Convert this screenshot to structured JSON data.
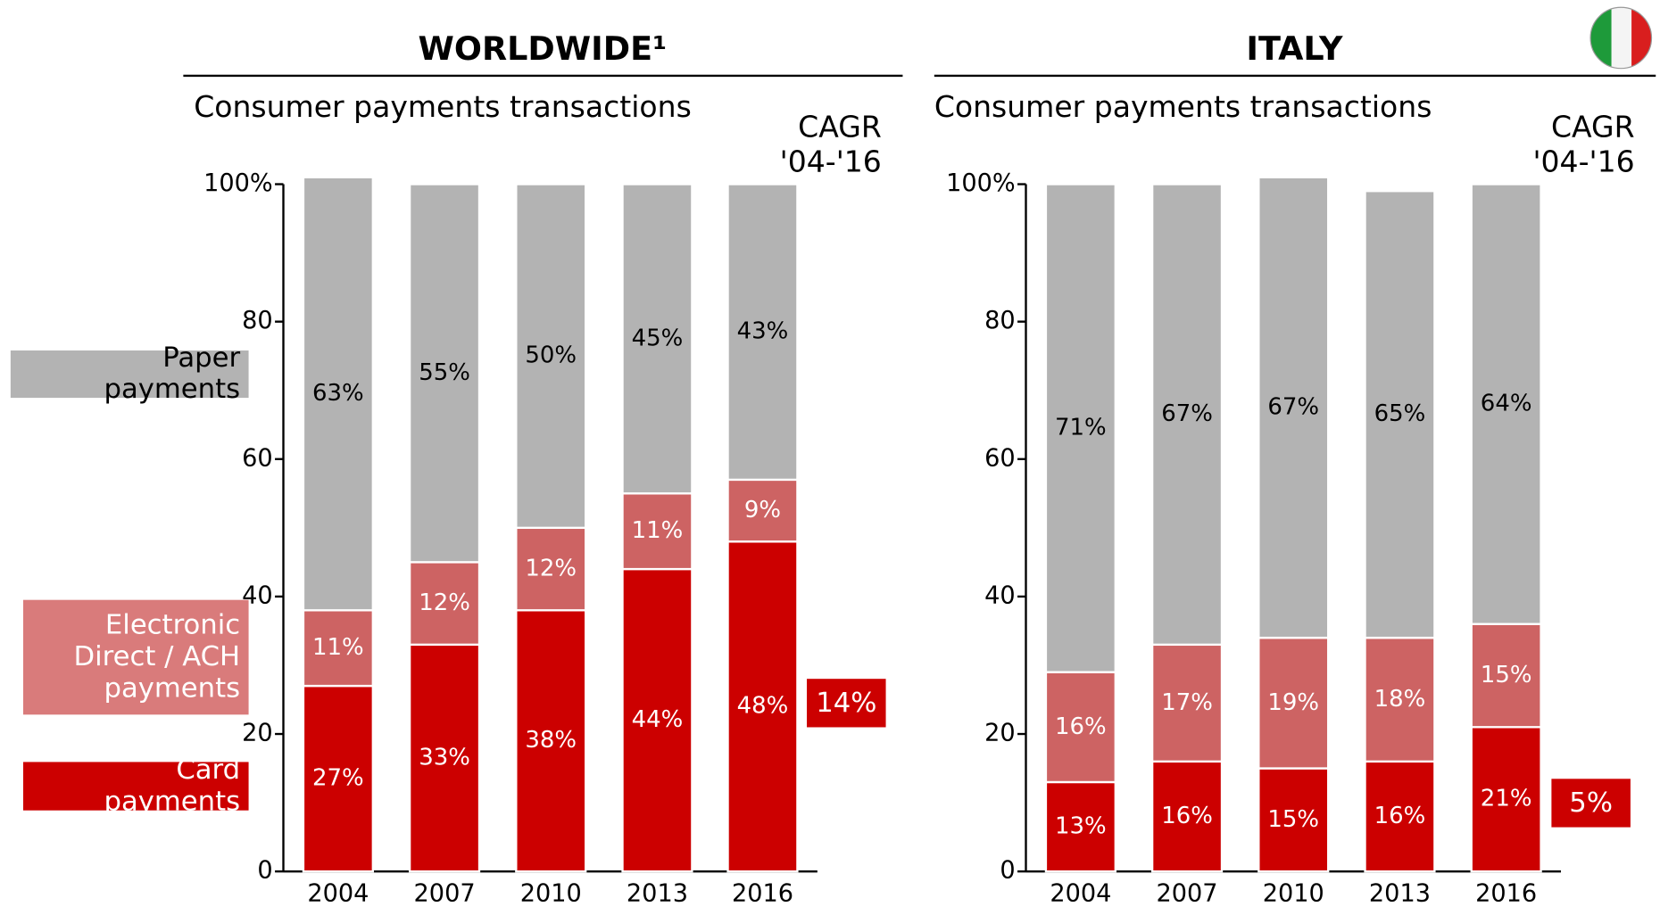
{
  "chart_data": [
    {
      "type": "stacked_bar",
      "title": "WORLDWIDE¹",
      "subtitle": "Consumer payments transactions",
      "cagr_header": [
        "CAGR",
        "'04-'16"
      ],
      "cagr": "14%",
      "categories": [
        "2004",
        "2007",
        "2010",
        "2013",
        "2016"
      ],
      "series": [
        {
          "name": "Card payments",
          "color": "#cc0000",
          "values": [
            27,
            33,
            38,
            44,
            48
          ],
          "value_labels": [
            "27%",
            "33%",
            "38%",
            "44%",
            "48%"
          ]
        },
        {
          "name": "Electronic Direct / ACH payments",
          "color": "#cd6363",
          "values": [
            11,
            12,
            12,
            11,
            9
          ],
          "value_labels": [
            "11%",
            "12%",
            "12%",
            "11%",
            "9%"
          ]
        },
        {
          "name": "Paper payments",
          "color": "#b3b3b3",
          "values": [
            63,
            55,
            50,
            45,
            43
          ],
          "value_labels": [
            "63%",
            "55%",
            "50%",
            "45%",
            "43%"
          ]
        }
      ],
      "ylim": [
        0,
        100
      ],
      "yticks": [
        0,
        20,
        40,
        60,
        80,
        {
          "value": 100,
          "label": "100%"
        }
      ]
    },
    {
      "type": "stacked_bar",
      "title": "ITALY",
      "subtitle": "Consumer payments transactions",
      "cagr_header": [
        "CAGR",
        "'04-'16"
      ],
      "cagr": "5%",
      "categories": [
        "2004",
        "2007",
        "2010",
        "2013",
        "2016"
      ],
      "series": [
        {
          "name": "Card payments",
          "color": "#cc0000",
          "values": [
            13,
            16,
            15,
            16,
            21
          ],
          "value_labels": [
            "13%",
            "16%",
            "15%",
            "16%",
            "21%"
          ]
        },
        {
          "name": "Electronic Direct / ACH payments",
          "color": "#cd6363",
          "values": [
            16,
            17,
            19,
            18,
            15
          ],
          "value_labels": [
            "16%",
            "17%",
            "19%",
            "18%",
            "15%"
          ]
        },
        {
          "name": "Paper payments",
          "color": "#b3b3b3",
          "values": [
            71,
            67,
            67,
            65,
            64
          ],
          "value_labels": [
            "71%",
            "67%",
            "67%",
            "65%",
            "64%"
          ]
        }
      ],
      "ylim": [
        0,
        100
      ],
      "yticks": [
        0,
        20,
        40,
        60,
        80,
        {
          "value": 100,
          "label": "100%"
        }
      ]
    }
  ]
}
